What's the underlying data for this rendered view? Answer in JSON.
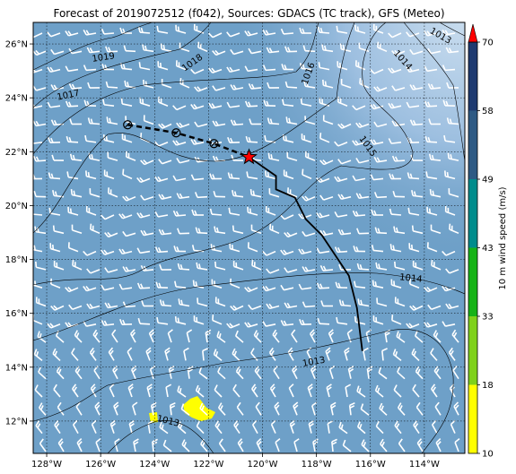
{
  "title": "Forecast of 2019072512 (f042), Sources: GDACS (TC track), GFS (Meteo)",
  "map": {
    "lon_range": [
      -128.5,
      -112.5
    ],
    "lat_range": [
      10.8,
      26.8
    ],
    "lon_ticks": [
      {
        "value": -128,
        "label": "128°W"
      },
      {
        "value": -126,
        "label": "126°W"
      },
      {
        "value": -124,
        "label": "124°W"
      },
      {
        "value": -122,
        "label": "122°W"
      },
      {
        "value": -120,
        "label": "120°W"
      },
      {
        "value": -118,
        "label": "118°W"
      },
      {
        "value": -116,
        "label": "116°W"
      },
      {
        "value": -114,
        "label": "114°W"
      }
    ],
    "lat_ticks": [
      {
        "value": 12,
        "label": "12°N"
      },
      {
        "value": 14,
        "label": "14°N"
      },
      {
        "value": 16,
        "label": "16°N"
      },
      {
        "value": 18,
        "label": "18°N"
      },
      {
        "value": 20,
        "label": "20°N"
      },
      {
        "value": 22,
        "label": "22°N"
      },
      {
        "value": 24,
        "label": "24°N"
      },
      {
        "value": 26,
        "label": "26°N"
      }
    ],
    "ocean_color": "#6ea0c8",
    "wind_patch_color": "#ffff00",
    "observed_track": [
      [
        -120.5,
        21.8
      ],
      [
        -119.5,
        21.1
      ],
      [
        -119.5,
        20.6
      ],
      [
        -118.8,
        20.3
      ],
      [
        -118.4,
        19.5
      ],
      [
        -117.8,
        18.9
      ],
      [
        -117.2,
        18.0
      ],
      [
        -116.8,
        17.4
      ],
      [
        -116.5,
        16.2
      ],
      [
        -116.3,
        14.6
      ]
    ],
    "forecast_track": [
      [
        -125.0,
        23.0
      ],
      [
        -123.2,
        22.7
      ],
      [
        -121.8,
        22.3
      ],
      [
        -120.5,
        21.8
      ]
    ],
    "forecast_points": [
      [
        -125.0,
        23.0
      ],
      [
        -123.2,
        22.7
      ],
      [
        -121.8,
        22.3
      ]
    ],
    "storm_position": [
      -120.5,
      21.8
    ],
    "contour_labels": [
      {
        "text": "1019",
        "lon": -125.9,
        "lat": 25.5,
        "angle": -8
      },
      {
        "text": "1018",
        "lon": -122.6,
        "lat": 25.3,
        "angle": -35
      },
      {
        "text": "1017",
        "lon": -127.2,
        "lat": 24.1,
        "angle": -12
      },
      {
        "text": "1016",
        "lon": -118.3,
        "lat": 24.9,
        "angle": -70
      },
      {
        "text": "1015",
        "lon": -116.1,
        "lat": 22.2,
        "angle": 55
      },
      {
        "text": "1014",
        "lon": -114.8,
        "lat": 25.4,
        "angle": 48
      },
      {
        "text": "1014",
        "lon": -114.5,
        "lat": 17.3,
        "angle": 6
      },
      {
        "text": "1013",
        "lon": -118.1,
        "lat": 14.2,
        "angle": -10
      },
      {
        "text": "1013",
        "lon": -123.5,
        "lat": 12.0,
        "angle": 14
      },
      {
        "text": "1013",
        "lon": -113.4,
        "lat": 26.3,
        "angle": 30
      }
    ]
  },
  "colorbar": {
    "label": "10 m wind speed (m/s)",
    "ticks": [
      "10",
      "18",
      "33",
      "43",
      "49",
      "58",
      "70"
    ],
    "colors": [
      "#ffff00",
      "#7fd11b",
      "#17b317",
      "#008c8c",
      "#2e5a84",
      "#1e3a70"
    ],
    "extend_color": "#ff0000"
  }
}
